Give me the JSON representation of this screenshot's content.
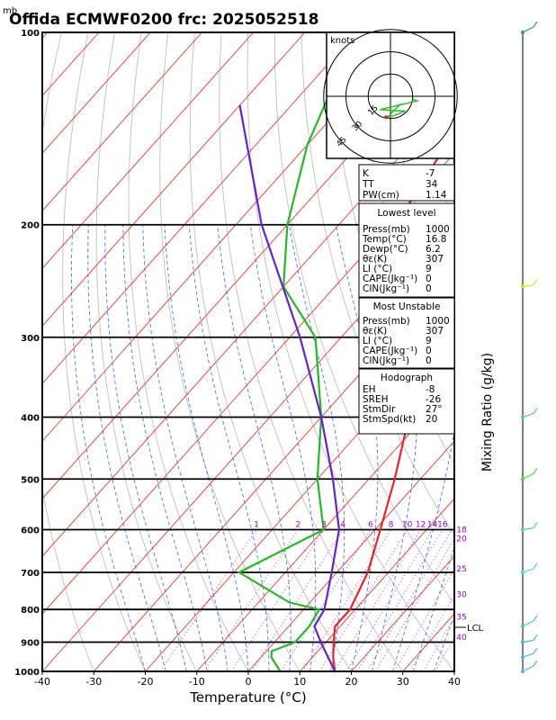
{
  "header": {
    "unit_mb": "mb",
    "title": "Offida ECMWF0200  frc: 2025052518"
  },
  "hodograph": {
    "unit": "knots",
    "ring_labels": [
      "15",
      "30",
      "45"
    ],
    "points": [
      [
        7,
        -5
      ],
      [
        -3,
        -15
      ],
      [
        10,
        -10
      ],
      [
        -7,
        -9
      ],
      [
        18,
        -3
      ],
      [
        15,
        -2
      ]
    ]
  },
  "indices": {
    "k_label": "K",
    "k": "-7",
    "tt_label": "TT",
    "tt": "34",
    "pw_label": "PW(cm)",
    "pw": "1.14"
  },
  "lowest_level": {
    "header": "Lowest level",
    "rows": [
      [
        "Press(mb)",
        "1000"
      ],
      [
        "Temp(°C)",
        "16.8"
      ],
      [
        "Dewp(°C)",
        "6.2"
      ],
      [
        "θε(K)",
        "307"
      ],
      [
        "LI (°C)",
        "9"
      ],
      [
        "CAPE(Jkg⁻¹)",
        "0"
      ],
      [
        "CIN(Jkg⁻¹)",
        "0"
      ]
    ]
  },
  "most_unstable": {
    "header": "Most Unstable",
    "rows": [
      [
        "Press(mb)",
        "1000"
      ],
      [
        "θε(K)",
        "307"
      ],
      [
        "LI (°C)",
        "9"
      ],
      [
        "CAPE(Jkg⁻¹)",
        "0"
      ],
      [
        "CIN(Jkg⁻¹)",
        "0"
      ]
    ]
  },
  "hodo_stats": {
    "header": "Hodograph",
    "rows": [
      [
        "EH",
        "-8"
      ],
      [
        "SREH",
        "-26"
      ],
      [
        "StmDir",
        "27°"
      ],
      [
        "StmSpd(kt)",
        "20"
      ]
    ]
  },
  "right_axis_label": "Mixing Ratio (g/kg)",
  "lcl_label": "LCL",
  "chart_data": {
    "type": "line",
    "subtype": "skew-T log-P sounding",
    "xlabel": "Temperature (°C)",
    "ylabel": "mb",
    "xlim": [
      -40,
      40
    ],
    "ylim": [
      1000,
      100
    ],
    "y_scale": "log",
    "pressure_ticks": [
      100,
      200,
      300,
      400,
      500,
      600,
      700,
      800,
      900,
      1000
    ],
    "temperature_ticks": [
      -40,
      -30,
      -20,
      -10,
      0,
      10,
      20,
      30,
      40
    ],
    "mixing_ratio_labels": [
      "1",
      "2",
      "3",
      "4",
      "6",
      "8",
      "10",
      "12",
      "14",
      "16",
      "18",
      "20",
      "25",
      "30",
      "35",
      "40"
    ],
    "series": [
      {
        "color": "#ee2222",
        "points": [
          [
            1000,
            16.8
          ],
          [
            950,
            14
          ],
          [
            900,
            11.5
          ],
          [
            850,
            9
          ],
          [
            800,
            9
          ],
          [
            700,
            6
          ],
          [
            600,
            1
          ],
          [
            500,
            -5
          ],
          [
            400,
            -13
          ],
          [
            300,
            -28
          ],
          [
            250,
            -40
          ],
          [
            200,
            -49
          ],
          [
            150,
            -53
          ],
          [
            100,
            -57
          ]
        ]
      },
      {
        "color": "#22bb22",
        "points": [
          [
            1000,
            6.2
          ],
          [
            950,
            2
          ],
          [
            930,
            1
          ],
          [
            900,
            4
          ],
          [
            850,
            4
          ],
          [
            800,
            3
          ],
          [
            780,
            -4
          ],
          [
            700,
            -19
          ],
          [
            600,
            -10
          ],
          [
            500,
            -20
          ],
          [
            400,
            -30
          ],
          [
            300,
            -45
          ],
          [
            250,
            -60
          ],
          [
            200,
            -70
          ],
          [
            150,
            -80
          ],
          [
            100,
            -90
          ]
        ]
      },
      {
        "color": "#6622cc",
        "points": [
          [
            1000,
            16.8
          ],
          [
            950,
            13
          ],
          [
            900,
            9
          ],
          [
            850,
            5
          ],
          [
            800,
            4
          ],
          [
            700,
            -1
          ],
          [
            600,
            -7
          ],
          [
            500,
            -17
          ],
          [
            400,
            -30
          ],
          [
            300,
            -48
          ],
          [
            200,
            -75
          ],
          [
            130,
            -100
          ]
        ]
      }
    ]
  },
  "wind_barbs": [
    [
      1000,
      "#44bbdd"
    ],
    [
      950,
      "#44bbdd"
    ],
    [
      900,
      "#44bbdd"
    ],
    [
      850,
      "#44bbdd"
    ],
    [
      700,
      "#44dddd"
    ],
    [
      600,
      "#44ddaa"
    ],
    [
      500,
      "#44dd44"
    ],
    [
      400,
      "#44dd66"
    ],
    [
      250,
      "#dddd11"
    ],
    [
      100,
      "#3388cc"
    ]
  ]
}
